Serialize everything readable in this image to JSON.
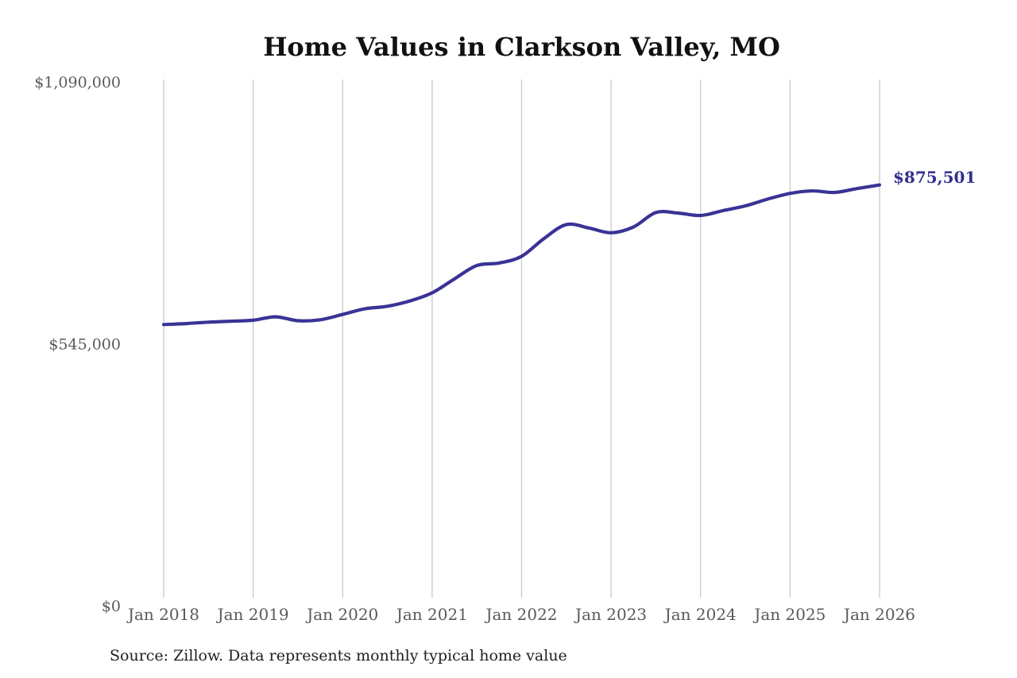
{
  "header": {
    "title": "Home Values in Clarkson Valley, MO"
  },
  "footer": {
    "source_note": "Source: Zillow. Data represents monthly typical home value"
  },
  "chart": {
    "end_label": "$875,501",
    "colors": {
      "line": "#3a3396",
      "end_label": "#33308e",
      "grid": "#c9c9c9",
      "axis_text": "#5a5a5a",
      "title_text": "#111111",
      "source_text": "#1f1f1f",
      "background": "#ffffff"
    },
    "y_ticks": [
      {
        "label": "$1,090,000",
        "value": 1090000
      },
      {
        "label": "$545,000",
        "value": 545000
      },
      {
        "label": "$0",
        "value": 0
      }
    ],
    "x_ticks": [
      {
        "label": "Jan 2018",
        "month": "2018-01"
      },
      {
        "label": "Jan 2019",
        "month": "2019-01"
      },
      {
        "label": "Jan 2020",
        "month": "2020-01"
      },
      {
        "label": "Jan 2021",
        "month": "2021-01"
      },
      {
        "label": "Jan 2022",
        "month": "2022-01"
      },
      {
        "label": "Jan 2023",
        "month": "2023-01"
      },
      {
        "label": "Jan 2024",
        "month": "2024-01"
      },
      {
        "label": "Jan 2025",
        "month": "2025-01"
      },
      {
        "label": "Jan 2026",
        "month": "2026-01"
      }
    ]
  },
  "chart_data": {
    "type": "line",
    "title": "Home Values in Clarkson Valley, MO",
    "xlabel": "",
    "ylabel": "",
    "ylim": [
      0,
      1090000
    ],
    "x_range": [
      "2018-01",
      "2026-01"
    ],
    "grid": "vertical-only",
    "legend_position": "none",
    "x": [
      "2018-01",
      "2018-04",
      "2018-07",
      "2018-10",
      "2019-01",
      "2019-04",
      "2019-07",
      "2019-10",
      "2020-01",
      "2020-04",
      "2020-07",
      "2020-10",
      "2021-01",
      "2021-04",
      "2021-07",
      "2021-10",
      "2022-01",
      "2022-04",
      "2022-07",
      "2022-10",
      "2023-01",
      "2023-04",
      "2023-07",
      "2023-10",
      "2024-01",
      "2024-04",
      "2024-07",
      "2024-10",
      "2025-01",
      "2025-04",
      "2025-07",
      "2025-10",
      "2026-01"
    ],
    "series": [
      {
        "name": "Monthly typical home value",
        "values": [
          585000,
          587000,
          590000,
          592000,
          594000,
          601000,
          593000,
          595000,
          606000,
          618000,
          623000,
          634000,
          651000,
          680000,
          708000,
          713000,
          727000,
          764000,
          793000,
          786000,
          776000,
          788000,
          818000,
          817000,
          812000,
          822000,
          832000,
          846000,
          858000,
          863000,
          860000,
          868000,
          875501
        ]
      }
    ],
    "annotations": [
      {
        "text": "$875,501",
        "x": "2026-01",
        "y": 875501
      }
    ]
  }
}
